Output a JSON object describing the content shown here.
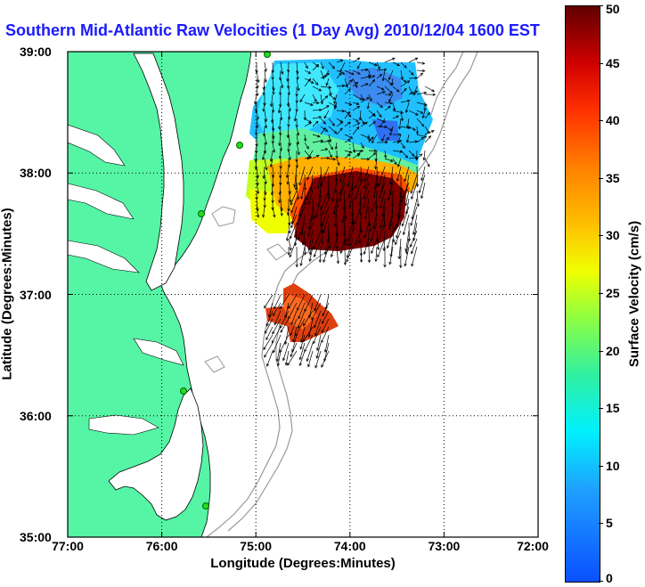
{
  "title": "Southern Mid-Atlantic Raw Velocities (1 Day Avg) 2010/12/04 1600 EST",
  "axes": {
    "xlabel": "Longitude (Degrees:Minutes)",
    "ylabel": "Latitude (Degrees:Minutes)",
    "x_ticks": [
      "77:00",
      "76:00",
      "75:00",
      "74:00",
      "73:00",
      "72:00"
    ],
    "y_ticks": [
      "39:00",
      "38:00",
      "37:00",
      "36:00",
      "35:00"
    ]
  },
  "colorbar": {
    "label": "Surface Velocity (cm/s)",
    "ticks": [
      "0",
      "5",
      "10",
      "15",
      "20",
      "25",
      "30",
      "35",
      "40",
      "45",
      "50"
    ],
    "range": [
      0,
      50
    ]
  },
  "colors": {
    "land": "#55f5a5",
    "title": "#1a1aff",
    "station": "#22dd22",
    "bathymetry": "#999999"
  }
}
